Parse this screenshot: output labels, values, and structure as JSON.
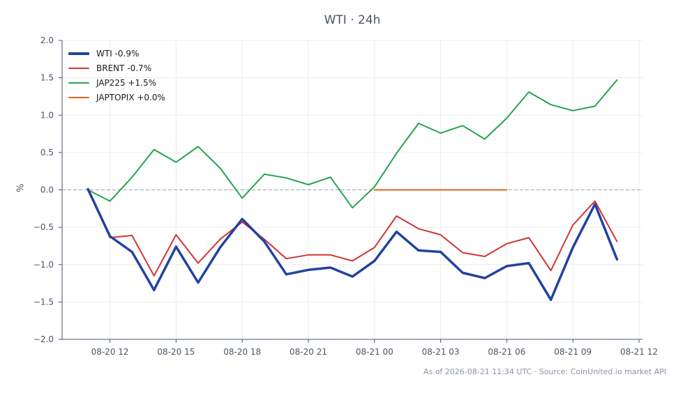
{
  "chart_data": {
    "type": "line",
    "title": "WTI · 24h",
    "ylabel": "%",
    "xlabel": "",
    "ylim": [
      -2.0,
      2.0
    ],
    "yticks": [
      "2.0",
      "1.5",
      "1.0",
      "0.5",
      "0.0",
      "−0.5",
      "−1.0",
      "−1.5",
      "−2.0"
    ],
    "xticks": [
      "08-20 12",
      "08-20 15",
      "08-20 18",
      "08-20 21",
      "08-21 00",
      "08-21 03",
      "08-21 06",
      "08-21 09",
      "08-21 12"
    ],
    "grid": true,
    "legend_position": "top-left",
    "baseline": 0.0,
    "x": [
      "08-20 11:00",
      "08-20 12:00",
      "08-20 13:00",
      "08-20 14:00",
      "08-20 15:00",
      "08-20 16:00",
      "08-20 17:00",
      "08-20 18:00",
      "08-20 19:00",
      "08-20 20:00",
      "08-20 21:00",
      "08-20 22:00",
      "08-20 23:00",
      "08-21 00:00",
      "08-21 01:00",
      "08-21 02:00",
      "08-21 03:00",
      "08-21 04:00",
      "08-21 05:00",
      "08-21 06:00",
      "08-21 07:00",
      "08-21 08:00",
      "08-21 09:00",
      "08-21 10:00",
      "08-21 11:00"
    ],
    "series": [
      {
        "name": "WTI -0.9%",
        "color": "#2342a0",
        "values": [
          0.01,
          -0.62,
          -0.83,
          -1.34,
          -0.76,
          -1.24,
          -0.77,
          -0.39,
          -0.69,
          -1.13,
          -1.07,
          -1.04,
          -1.16,
          -0.95,
          -0.56,
          -0.81,
          -0.83,
          -1.11,
          -1.18,
          -1.02,
          -0.98,
          -1.47,
          -0.77,
          -0.19,
          -0.93
        ]
      },
      {
        "name": "BRENT -0.7%",
        "color": "#d03535",
        "values": [
          0.01,
          -0.64,
          -0.61,
          -1.15,
          -0.6,
          -0.98,
          -0.66,
          -0.43,
          -0.66,
          -0.92,
          -0.87,
          -0.87,
          -0.95,
          -0.77,
          -0.35,
          -0.52,
          -0.6,
          -0.84,
          -0.89,
          -0.72,
          -0.64,
          -1.08,
          -0.47,
          -0.15,
          -0.69
        ]
      },
      {
        "name": "JAP225 +1.5%",
        "color": "#27a24f",
        "values": [
          0.0,
          -0.15,
          0.17,
          0.54,
          0.37,
          0.58,
          0.29,
          -0.11,
          0.21,
          0.16,
          0.07,
          0.17,
          -0.24,
          0.04,
          0.49,
          0.89,
          0.76,
          0.86,
          0.68,
          0.96,
          1.31,
          1.14,
          1.06,
          1.12,
          1.47
        ]
      },
      {
        "name": "JAPTOPIX +0.0%",
        "color": "#e0621a",
        "values": [
          null,
          null,
          null,
          null,
          null,
          null,
          null,
          null,
          null,
          null,
          null,
          null,
          null,
          0.0,
          0.0,
          0.0,
          0.0,
          0.0,
          0.0,
          0.0,
          null,
          null,
          null,
          null,
          null
        ]
      }
    ]
  },
  "footer": "As of 2026-08-21 11:34 UTC · Source: CoinUnited.io market API"
}
